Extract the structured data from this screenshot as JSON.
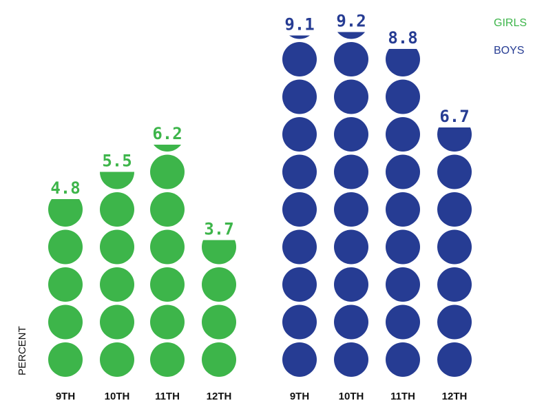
{
  "chart_data": {
    "type": "bar",
    "ylabel": "PERCENT",
    "categories": [
      "9TH",
      "10TH",
      "11TH",
      "12TH"
    ],
    "unit_per_circle": 1,
    "series": [
      {
        "name": "GIRLS",
        "color": "#3db54a",
        "values": [
          4.8,
          5.5,
          6.2,
          3.7
        ],
        "labels": [
          "4.8",
          "5.5",
          "6.2",
          "3.7"
        ]
      },
      {
        "name": "BOYS",
        "color": "#263c93",
        "values": [
          9.1,
          9.2,
          8.8,
          6.7
        ],
        "labels": [
          "9.1",
          "9.2",
          "8.8",
          "6.7"
        ]
      }
    ],
    "legend_position": "top-right"
  }
}
